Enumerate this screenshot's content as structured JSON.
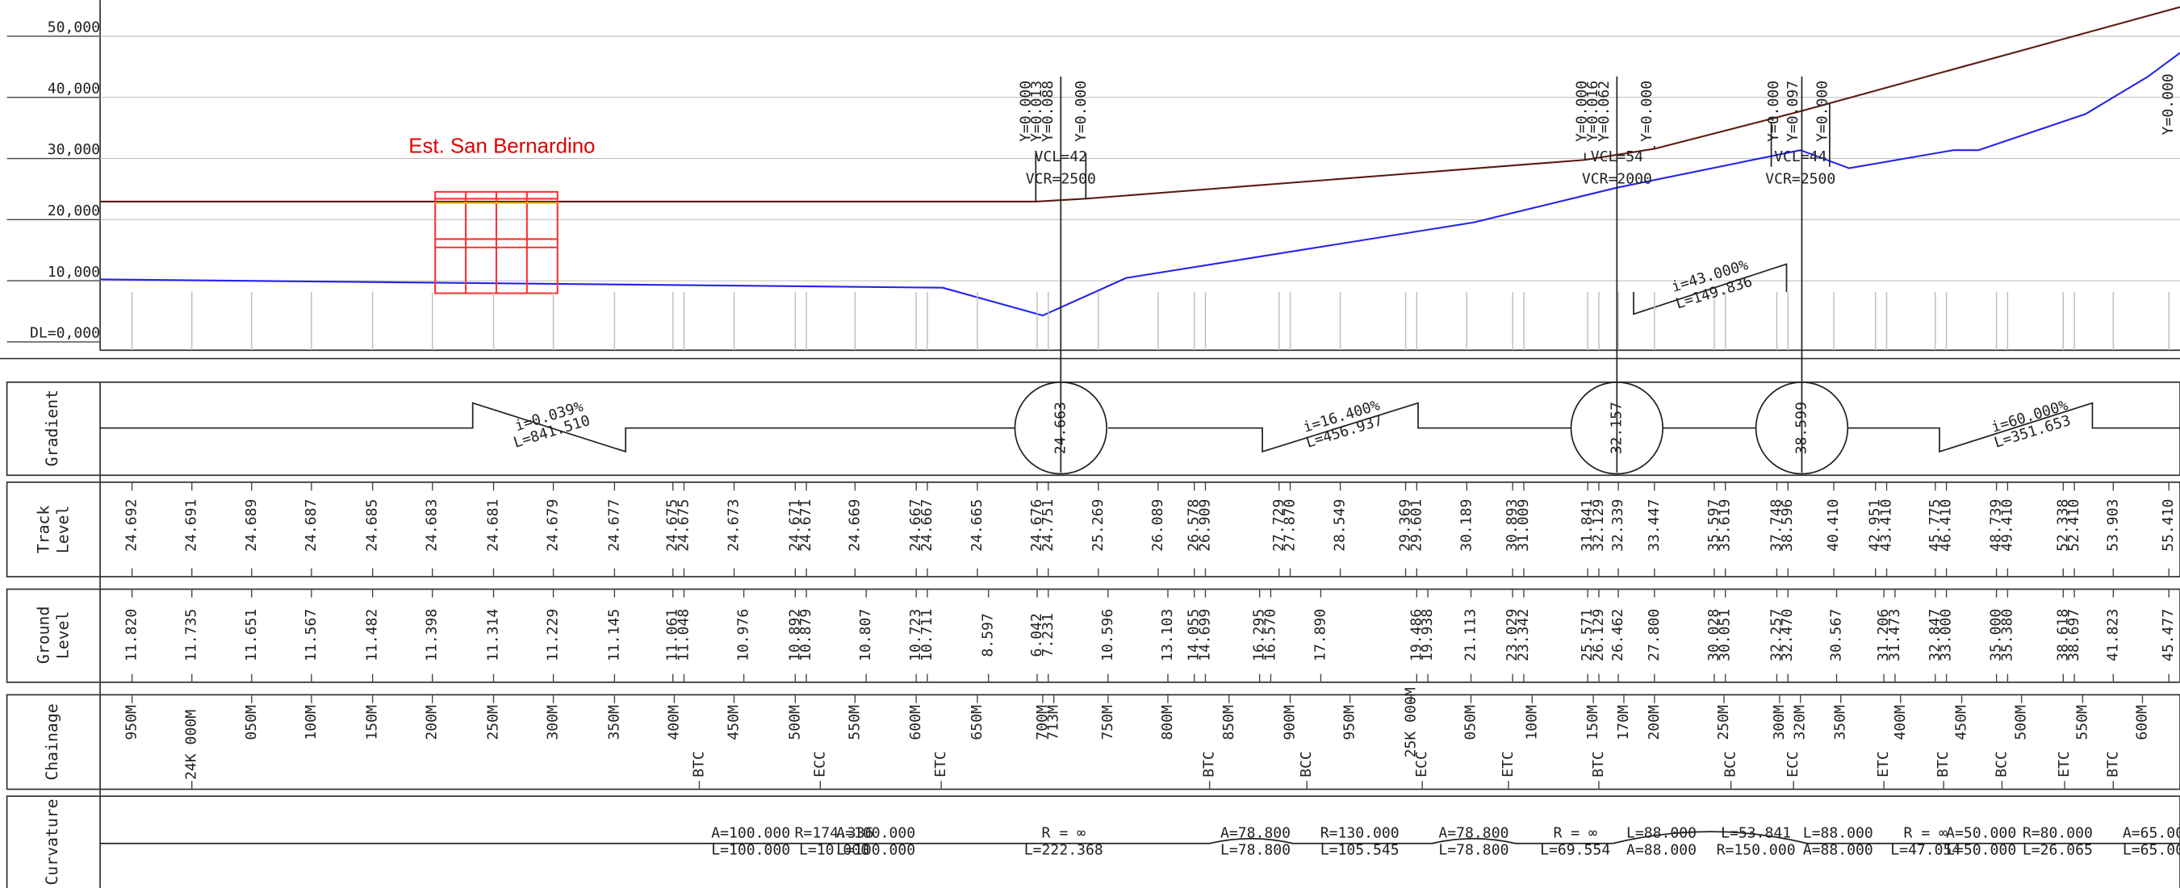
{
  "profile": {
    "axis_labels": [
      "50,000",
      "40,000",
      "30,000",
      "20,000",
      "10,000",
      "DL=0,000"
    ],
    "station": "Est. San Bernardino",
    "vertical_curves": [
      {
        "ordinates": [
          "Y=0.000",
          "Y=0.013",
          "Y=0.088",
          "Y=0.000"
        ],
        "vcl": "VCL=42",
        "vcr": "VCR=2500"
      },
      {
        "ordinates": [
          "Y=0.000",
          "Y=0.016",
          "Y=0.062",
          "Y=0.000"
        ],
        "vcl": "VCL=54",
        "vcr": "VCR=2000"
      },
      {
        "ordinates": [
          "Y=0.000",
          "Y=0.097",
          "Y=0.000"
        ],
        "vcl": "VCL=44",
        "vcr": "VCR=2500"
      }
    ],
    "grade_note": [
      "i=43.000%",
      "L=149.836"
    ],
    "edge_label": "Y=0.000"
  },
  "rows": {
    "gradient": {
      "title": "Gradient",
      "segments": [
        [
          "i=0.039%",
          "L=841.510"
        ],
        [
          "i=16.400%",
          "L=456.937"
        ],
        [
          "i=60.000%",
          "L=351.653"
        ]
      ],
      "pvi": [
        "24.663",
        "32.157",
        "38.599"
      ]
    },
    "track_level": {
      "title": [
        "Track",
        "Level"
      ],
      "values": [
        "24.692",
        "24.691",
        "24.689",
        "24.687",
        "24.685",
        "24.683",
        "24.681",
        "24.679",
        "24.677",
        "24.675",
        "24.675",
        "24.673",
        "24.671",
        "24.671",
        "24.669",
        "24.667",
        "24.667",
        "24.665",
        "24.676",
        "24.751",
        "25.269",
        "26.089",
        "26.578",
        "26.909",
        "27.729",
        "27.870",
        "28.549",
        "29.369",
        "29.601",
        "30.189",
        "30.893",
        "31.009",
        "31.841",
        "32.129",
        "32.339",
        "33.447",
        "35.597",
        "35.619",
        "37.748",
        "38.596",
        "40.410",
        "42.951",
        "43.410",
        "45.775",
        "46.410",
        "48.739",
        "49.410",
        "52.338",
        "52.410",
        "53.903",
        "55.410"
      ]
    },
    "ground_level": {
      "title": [
        "Ground",
        "Level"
      ],
      "values": [
        "11.820",
        "11.735",
        "11.651",
        "11.567",
        "11.482",
        "11.398",
        "11.314",
        "11.229",
        "11.145",
        "11.061",
        "11.048",
        "10.976",
        "10.892",
        "10.879",
        "10.807",
        "10.723",
        "10.711",
        "8.597",
        "6.042",
        "7.231",
        "10.596",
        "13.103",
        "14.055",
        "14.699",
        "16.295",
        "16.570",
        "17.890",
        "19.486",
        "19.938",
        "21.113",
        "23.029",
        "23.342",
        "25.571",
        "26.129",
        "26.462",
        "27.800",
        "30.028",
        "30.051",
        "32.257",
        "32.470",
        "30.567",
        "31.206",
        "31.473",
        "32.847",
        "33.000",
        "35.000",
        "35.380",
        "38.618",
        "38.697",
        "41.823",
        "45.477"
      ]
    },
    "chainage": {
      "title": "Chainage",
      "stations": [
        "950M",
        "050M",
        "100M",
        "150M",
        "200M",
        "250M",
        "300M",
        "350M",
        "400M",
        "450M",
        "500M",
        "550M",
        "600M",
        "650M",
        "700M",
        "713M",
        "750M",
        "800M",
        "850M",
        "900M",
        "950M",
        "25K 000M",
        "050M",
        "100M",
        "150M",
        "170M",
        "200M",
        "250M",
        "300M",
        "320M",
        "350M",
        "400M",
        "450M",
        "500M",
        "550M",
        "600M"
      ],
      "points": [
        "24K 000M",
        "BTC",
        "ECC",
        "ETC",
        "BTC",
        "BCC",
        "ECC",
        "ETC",
        "BTC",
        "BCC",
        "ECC",
        "ETC",
        "BTC",
        "BCC",
        "ETC",
        "BTC"
      ]
    },
    "curvature": {
      "title": "Curvature",
      "elements": [
        [
          "A=100.000",
          "L=100.000"
        ],
        [
          "R=174.336",
          "L=10.000"
        ],
        [
          "A=100.000",
          "L=100.000"
        ],
        [
          "R = ∞",
          "L=222.368"
        ],
        [
          "A=78.800",
          "L=78.800"
        ],
        [
          "R=130.000",
          "L=105.545"
        ],
        [
          "A=78.800",
          "L=78.800"
        ],
        [
          "R = ∞",
          "L=69.554"
        ],
        [
          "L=88.000",
          "A=88.000"
        ],
        [
          "L=53.841",
          "R=150.000"
        ],
        [
          "L=88.000",
          "A=88.000"
        ],
        [
          "R = ∞",
          "L=47.054"
        ],
        [
          "A=50.000",
          "L=50.000"
        ],
        [
          "R=80.000",
          "L=26.065"
        ],
        [
          "A=65.000",
          "L=65.000"
        ]
      ]
    }
  }
}
